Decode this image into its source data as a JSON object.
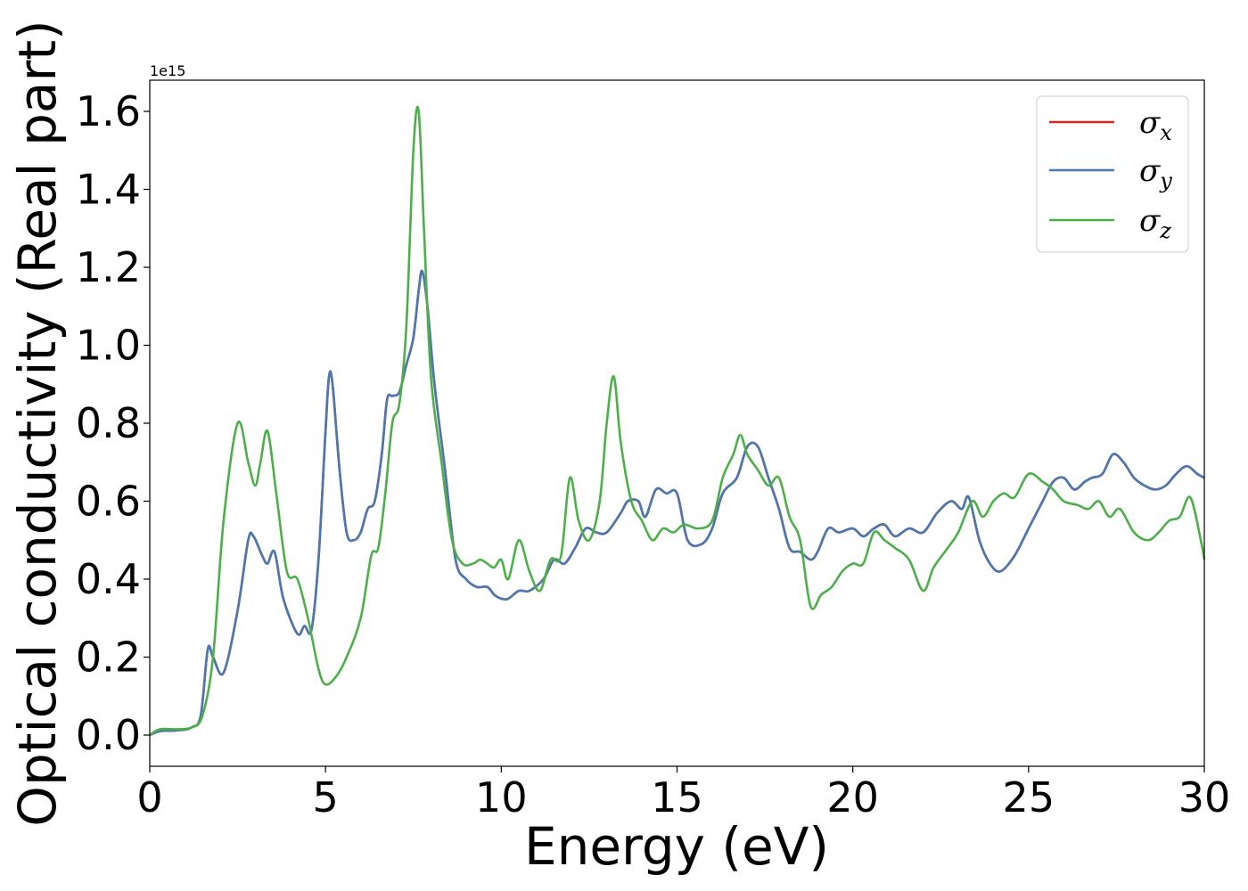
{
  "chart_data": {
    "type": "line",
    "title": "",
    "xlabel": "Energy (eV)",
    "ylabel": "Optical conductivity (Real part)",
    "offset_text": "1e15",
    "xlim": [
      0,
      30
    ],
    "ylim": [
      -0.08,
      1.68
    ],
    "xticks": [
      0,
      5,
      10,
      15,
      20,
      25,
      30
    ],
    "xtick_labels": [
      "0",
      "5",
      "10",
      "15",
      "20",
      "25",
      "30"
    ],
    "yticks": [
      0.0,
      0.2,
      0.4,
      0.6,
      0.8,
      1.0,
      1.2,
      1.4,
      1.6
    ],
    "ytick_labels": [
      "0.0",
      "0.2",
      "0.4",
      "0.6",
      "0.8",
      "1.0",
      "1.2",
      "1.4",
      "1.6"
    ],
    "grid": false,
    "legend_position": "top-right",
    "series": [
      {
        "name": "σ",
        "sub": "x",
        "color": "#d62728",
        "x": [
          0,
          0.3,
          0.8,
          1.2,
          1.45,
          1.65,
          1.8,
          2.1,
          2.5,
          2.8,
          2.95,
          3.2,
          3.35,
          3.55,
          3.8,
          4.2,
          4.4,
          4.6,
          4.8,
          5.0,
          5.1,
          5.2,
          5.4,
          5.6,
          5.8,
          6.0,
          6.2,
          6.4,
          6.6,
          6.75,
          6.9,
          7.1,
          7.3,
          7.5,
          7.65,
          7.75,
          7.9,
          8.1,
          8.4,
          8.7,
          9.0,
          9.3,
          9.6,
          9.8,
          10.0,
          10.2,
          10.5,
          10.8,
          11.2,
          11.5,
          11.8,
          12.1,
          12.4,
          12.7,
          13.0,
          13.4,
          13.6,
          13.9,
          14.1,
          14.4,
          14.7,
          15.0,
          15.3,
          15.7,
          16.0,
          16.3,
          16.7,
          17.0,
          17.3,
          17.6,
          17.9,
          18.2,
          18.5,
          18.8,
          19.0,
          19.3,
          19.6,
          20.0,
          20.3,
          20.6,
          20.9,
          21.2,
          21.6,
          22.0,
          22.4,
          22.8,
          23.1,
          23.3,
          23.6,
          23.9,
          24.2,
          24.6,
          25.0,
          25.4,
          25.7,
          26.0,
          26.3,
          26.6,
          26.8,
          27.1,
          27.4,
          27.7,
          28.0,
          28.3,
          28.6,
          28.9,
          29.2,
          29.5,
          29.8,
          30.0
        ],
        "y": [
          0.0,
          0.01,
          0.012,
          0.02,
          0.05,
          0.22,
          0.2,
          0.16,
          0.32,
          0.5,
          0.51,
          0.46,
          0.44,
          0.47,
          0.35,
          0.26,
          0.28,
          0.27,
          0.45,
          0.78,
          0.92,
          0.9,
          0.68,
          0.52,
          0.5,
          0.52,
          0.58,
          0.6,
          0.72,
          0.86,
          0.87,
          0.88,
          0.95,
          1.02,
          1.14,
          1.19,
          1.1,
          0.9,
          0.68,
          0.45,
          0.4,
          0.38,
          0.38,
          0.36,
          0.35,
          0.35,
          0.37,
          0.37,
          0.4,
          0.45,
          0.44,
          0.48,
          0.53,
          0.52,
          0.52,
          0.57,
          0.6,
          0.6,
          0.56,
          0.63,
          0.62,
          0.62,
          0.5,
          0.49,
          0.53,
          0.62,
          0.66,
          0.74,
          0.74,
          0.66,
          0.58,
          0.48,
          0.47,
          0.45,
          0.47,
          0.53,
          0.52,
          0.53,
          0.51,
          0.53,
          0.54,
          0.51,
          0.53,
          0.52,
          0.57,
          0.6,
          0.58,
          0.61,
          0.5,
          0.44,
          0.42,
          0.46,
          0.53,
          0.6,
          0.65,
          0.66,
          0.63,
          0.65,
          0.66,
          0.67,
          0.72,
          0.7,
          0.66,
          0.64,
          0.63,
          0.64,
          0.67,
          0.69,
          0.67,
          0.66
        ]
      },
      {
        "name": "σ",
        "sub": "y",
        "color": "#4a78b0",
        "x": [
          0,
          0.3,
          0.8,
          1.2,
          1.45,
          1.65,
          1.8,
          2.1,
          2.5,
          2.8,
          2.95,
          3.2,
          3.35,
          3.55,
          3.8,
          4.2,
          4.4,
          4.6,
          4.8,
          5.0,
          5.1,
          5.2,
          5.4,
          5.6,
          5.8,
          6.0,
          6.2,
          6.4,
          6.6,
          6.75,
          6.9,
          7.1,
          7.3,
          7.5,
          7.65,
          7.75,
          7.9,
          8.1,
          8.4,
          8.7,
          9.0,
          9.3,
          9.6,
          9.8,
          10.0,
          10.2,
          10.5,
          10.8,
          11.2,
          11.5,
          11.8,
          12.1,
          12.4,
          12.7,
          13.0,
          13.4,
          13.6,
          13.9,
          14.1,
          14.4,
          14.7,
          15.0,
          15.3,
          15.7,
          16.0,
          16.3,
          16.7,
          17.0,
          17.3,
          17.6,
          17.9,
          18.2,
          18.5,
          18.8,
          19.0,
          19.3,
          19.6,
          20.0,
          20.3,
          20.6,
          20.9,
          21.2,
          21.6,
          22.0,
          22.4,
          22.8,
          23.1,
          23.3,
          23.6,
          23.9,
          24.2,
          24.6,
          25.0,
          25.4,
          25.7,
          26.0,
          26.3,
          26.6,
          26.8,
          27.1,
          27.4,
          27.7,
          28.0,
          28.3,
          28.6,
          28.9,
          29.2,
          29.5,
          29.8,
          30.0
        ],
        "y": [
          0.0,
          0.01,
          0.012,
          0.02,
          0.05,
          0.22,
          0.2,
          0.16,
          0.32,
          0.5,
          0.51,
          0.46,
          0.44,
          0.47,
          0.35,
          0.26,
          0.28,
          0.27,
          0.45,
          0.78,
          0.92,
          0.9,
          0.68,
          0.52,
          0.5,
          0.52,
          0.58,
          0.6,
          0.72,
          0.86,
          0.87,
          0.88,
          0.95,
          1.02,
          1.14,
          1.19,
          1.1,
          0.9,
          0.68,
          0.45,
          0.4,
          0.38,
          0.38,
          0.36,
          0.35,
          0.35,
          0.37,
          0.37,
          0.4,
          0.45,
          0.44,
          0.48,
          0.53,
          0.52,
          0.52,
          0.57,
          0.6,
          0.6,
          0.56,
          0.63,
          0.62,
          0.62,
          0.5,
          0.49,
          0.53,
          0.62,
          0.66,
          0.74,
          0.74,
          0.66,
          0.58,
          0.48,
          0.47,
          0.45,
          0.47,
          0.53,
          0.52,
          0.53,
          0.51,
          0.53,
          0.54,
          0.51,
          0.53,
          0.52,
          0.57,
          0.6,
          0.58,
          0.61,
          0.5,
          0.44,
          0.42,
          0.46,
          0.53,
          0.6,
          0.65,
          0.66,
          0.63,
          0.65,
          0.66,
          0.67,
          0.72,
          0.7,
          0.66,
          0.64,
          0.63,
          0.64,
          0.67,
          0.69,
          0.67,
          0.66
        ]
      },
      {
        "name": "σ",
        "sub": "z",
        "color": "#4daf4a",
        "x": [
          0,
          0.3,
          0.8,
          1.2,
          1.5,
          1.8,
          2.1,
          2.5,
          2.8,
          3.0,
          3.15,
          3.35,
          3.6,
          3.9,
          4.2,
          4.5,
          4.8,
          5.0,
          5.3,
          5.6,
          6.0,
          6.3,
          6.5,
          6.7,
          6.9,
          7.1,
          7.3,
          7.5,
          7.65,
          7.8,
          8.0,
          8.3,
          8.6,
          8.9,
          9.2,
          9.4,
          9.6,
          9.8,
          10.0,
          10.2,
          10.5,
          10.8,
          11.1,
          11.4,
          11.7,
          11.95,
          12.2,
          12.5,
          12.8,
          13.0,
          13.2,
          13.4,
          13.7,
          14.0,
          14.3,
          14.6,
          14.9,
          15.2,
          15.6,
          16.0,
          16.3,
          16.6,
          16.8,
          17.0,
          17.3,
          17.6,
          17.9,
          18.2,
          18.5,
          18.8,
          19.1,
          19.4,
          19.7,
          20.0,
          20.3,
          20.6,
          20.9,
          21.2,
          21.6,
          22.0,
          22.3,
          22.7,
          23.0,
          23.4,
          23.7,
          24.0,
          24.3,
          24.6,
          25.0,
          25.4,
          25.7,
          26.0,
          26.4,
          26.7,
          27.0,
          27.3,
          27.6,
          28.0,
          28.4,
          28.7,
          29.0,
          29.3,
          29.6,
          29.9,
          30.0
        ],
        "y": [
          0.0,
          0.015,
          0.015,
          0.02,
          0.05,
          0.2,
          0.55,
          0.8,
          0.7,
          0.64,
          0.7,
          0.78,
          0.62,
          0.42,
          0.4,
          0.3,
          0.17,
          0.13,
          0.15,
          0.2,
          0.3,
          0.46,
          0.48,
          0.62,
          0.8,
          0.85,
          1.05,
          1.5,
          1.6,
          1.3,
          0.92,
          0.7,
          0.5,
          0.44,
          0.44,
          0.45,
          0.44,
          0.43,
          0.45,
          0.4,
          0.5,
          0.42,
          0.37,
          0.45,
          0.46,
          0.66,
          0.55,
          0.5,
          0.6,
          0.8,
          0.92,
          0.75,
          0.6,
          0.55,
          0.5,
          0.53,
          0.52,
          0.54,
          0.53,
          0.55,
          0.66,
          0.72,
          0.77,
          0.72,
          0.68,
          0.64,
          0.66,
          0.56,
          0.5,
          0.33,
          0.36,
          0.38,
          0.42,
          0.44,
          0.44,
          0.52,
          0.5,
          0.48,
          0.45,
          0.37,
          0.43,
          0.48,
          0.52,
          0.6,
          0.56,
          0.6,
          0.62,
          0.61,
          0.67,
          0.65,
          0.63,
          0.6,
          0.59,
          0.58,
          0.6,
          0.56,
          0.58,
          0.52,
          0.5,
          0.52,
          0.55,
          0.56,
          0.61,
          0.5,
          0.45
        ]
      }
    ]
  }
}
